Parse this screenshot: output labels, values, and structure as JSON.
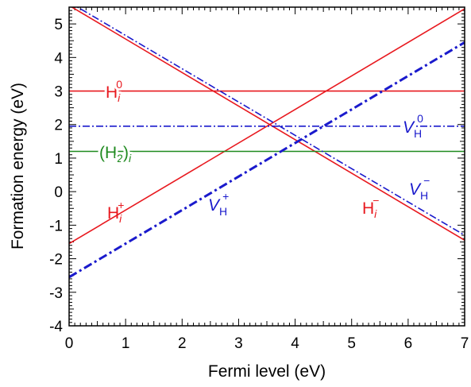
{
  "chart_data": {
    "type": "line",
    "xlabel": "Fermi level (eV)",
    "ylabel": "Formation energy (eV)",
    "xlim": [
      0,
      7
    ],
    "ylim": [
      -4,
      5.5
    ],
    "xticks": [
      0,
      1,
      2,
      3,
      4,
      5,
      6,
      7
    ],
    "yticks": [
      -4,
      -3,
      -2,
      -1,
      0,
      1,
      2,
      3,
      4,
      5
    ],
    "grid": false,
    "legend": "none",
    "colors": {
      "red": "#e8191f",
      "blue": "#1a1acc",
      "green": "#1f8a1f"
    },
    "series": [
      {
        "name": "H_i^0",
        "style": "solid",
        "color": "#e8191f",
        "x": [
          0,
          7
        ],
        "y": [
          3.0,
          3.0
        ]
      },
      {
        "name": "H_i^+",
        "style": "solid",
        "color": "#e8191f",
        "x": [
          0,
          7
        ],
        "y": [
          -1.55,
          5.45
        ]
      },
      {
        "name": "H_i^-",
        "style": "solid",
        "color": "#e8191f",
        "x": [
          0,
          7
        ],
        "y": [
          5.55,
          -1.45
        ]
      },
      {
        "name": "(H_2)_i",
        "style": "solid",
        "color": "#1f8a1f",
        "x": [
          0,
          7
        ],
        "y": [
          1.2,
          1.2
        ]
      },
      {
        "name": "V_H^0",
        "style": "dashdot",
        "color": "#1a1acc",
        "x": [
          0,
          7
        ],
        "y": [
          1.95,
          1.95
        ]
      },
      {
        "name": "V_H^+",
        "style": "dashdot-thick",
        "color": "#1a1acc",
        "x": [
          0,
          7
        ],
        "y": [
          -2.55,
          4.45
        ]
      },
      {
        "name": "V_H^-",
        "style": "dashdot",
        "color": "#1a1acc",
        "x": [
          0,
          7
        ],
        "y": [
          5.65,
          -1.3
        ]
      }
    ],
    "annotations": [
      {
        "id": "lab-hi0",
        "base": "H",
        "sub": "i",
        "sup": "0",
        "color": "#e8191f"
      },
      {
        "id": "lab-hip",
        "base": "H",
        "sub": "i",
        "sup": "+",
        "color": "#e8191f"
      },
      {
        "id": "lab-him",
        "base": "H",
        "sub": "i",
        "sup": "−",
        "color": "#e8191f"
      },
      {
        "id": "lab-h2",
        "base": "(H",
        "sub": "2",
        "after": ")",
        "sub2": "i",
        "color": "#1f8a1f"
      },
      {
        "id": "lab-vh0",
        "base": "V",
        "sub": "H",
        "sup": "0",
        "color": "#1a1acc"
      },
      {
        "id": "lab-vhp",
        "base": "V",
        "sub": "H",
        "sup": "+",
        "color": "#1a1acc"
      },
      {
        "id": "lab-vhm",
        "base": "V",
        "sub": "H",
        "sup": "−",
        "color": "#1a1acc"
      }
    ]
  }
}
